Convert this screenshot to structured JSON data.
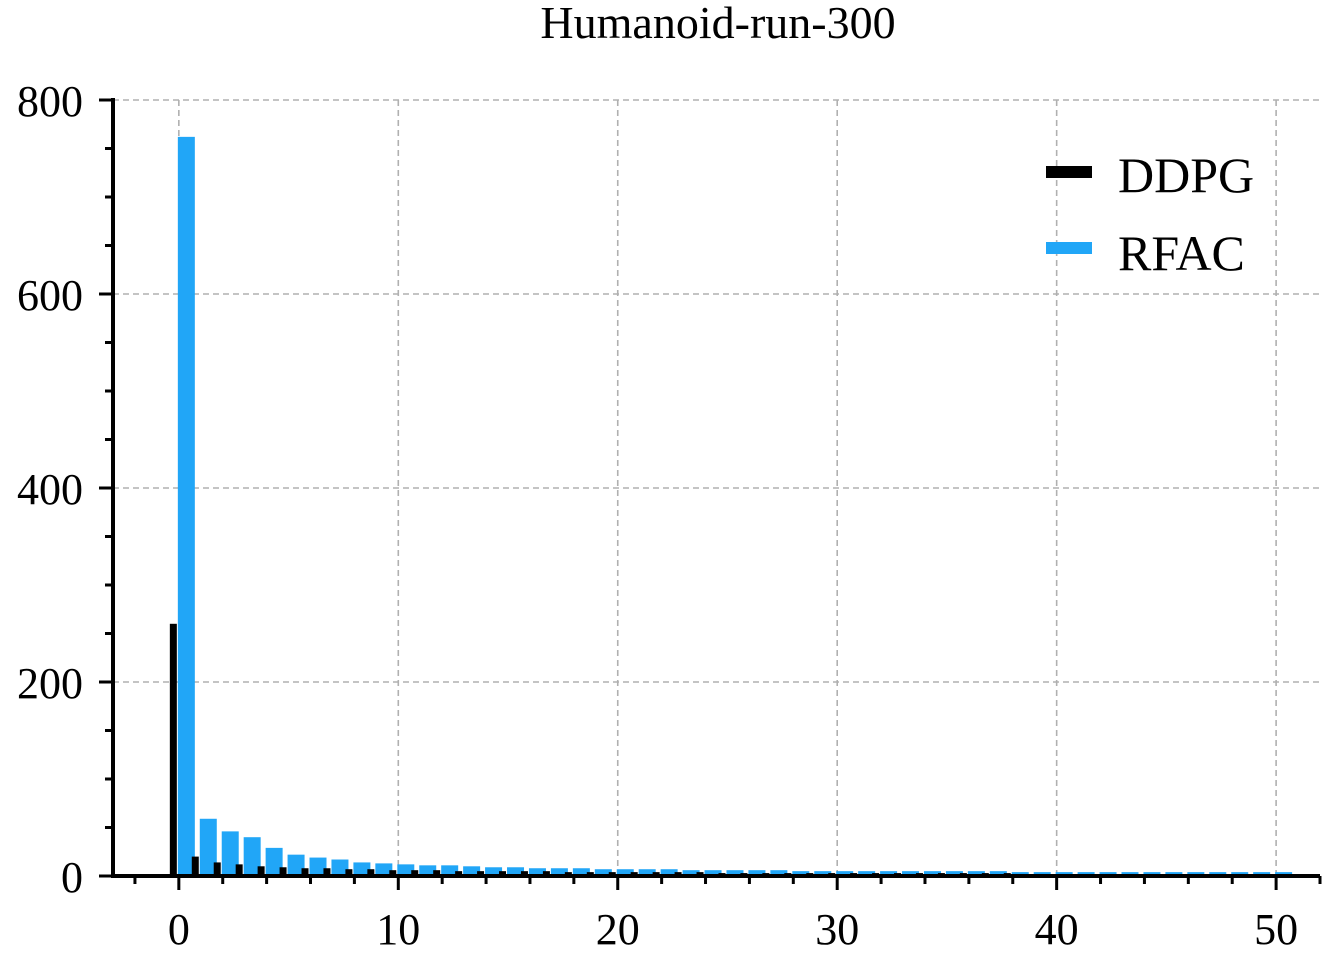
{
  "chart_data": {
    "type": "bar",
    "title": "Humanoid-run-300",
    "xlabel": "",
    "ylabel": "",
    "xlim": [
      -3,
      52
    ],
    "ylim": [
      0,
      800
    ],
    "x_ticks": [
      0,
      10,
      20,
      30,
      40,
      50
    ],
    "y_ticks": [
      0,
      200,
      400,
      600,
      800
    ],
    "grid": true,
    "legend_position": "top-right",
    "x": [
      0,
      1,
      2,
      3,
      4,
      5,
      6,
      7,
      8,
      9,
      10,
      11,
      12,
      13,
      14,
      15,
      16,
      17,
      18,
      19,
      20,
      21,
      22,
      23,
      24,
      25,
      26,
      27,
      28,
      29,
      30,
      31,
      32,
      33,
      34,
      35,
      36,
      37,
      38,
      39,
      40,
      41,
      42,
      43,
      44,
      45,
      46,
      47,
      48,
      49,
      50
    ],
    "series": [
      {
        "name": "DDPG",
        "color": "#000000",
        "values": [
          260,
          20,
          14,
          12,
          10,
          9,
          8,
          8,
          7,
          7,
          6,
          6,
          6,
          5,
          5,
          5,
          5,
          5,
          4,
          4,
          4,
          4,
          4,
          4,
          4,
          3,
          3,
          3,
          3,
          3,
          3,
          3,
          3,
          3,
          3,
          3,
          3,
          3,
          3,
          2,
          2,
          2,
          2,
          2,
          2,
          2,
          2,
          2,
          2,
          2,
          2
        ]
      },
      {
        "name": "RFAC",
        "color": "#21a6f7",
        "values": [
          762,
          59,
          46,
          40,
          29,
          22,
          19,
          17,
          14,
          13,
          12,
          11,
          11,
          10,
          9,
          9,
          8,
          8,
          8,
          7,
          7,
          7,
          7,
          6,
          6,
          6,
          6,
          6,
          5,
          5,
          5,
          5,
          5,
          5,
          5,
          5,
          5,
          5,
          4,
          4,
          4,
          4,
          4,
          4,
          4,
          4,
          4,
          4,
          4,
          4,
          4
        ]
      }
    ]
  }
}
